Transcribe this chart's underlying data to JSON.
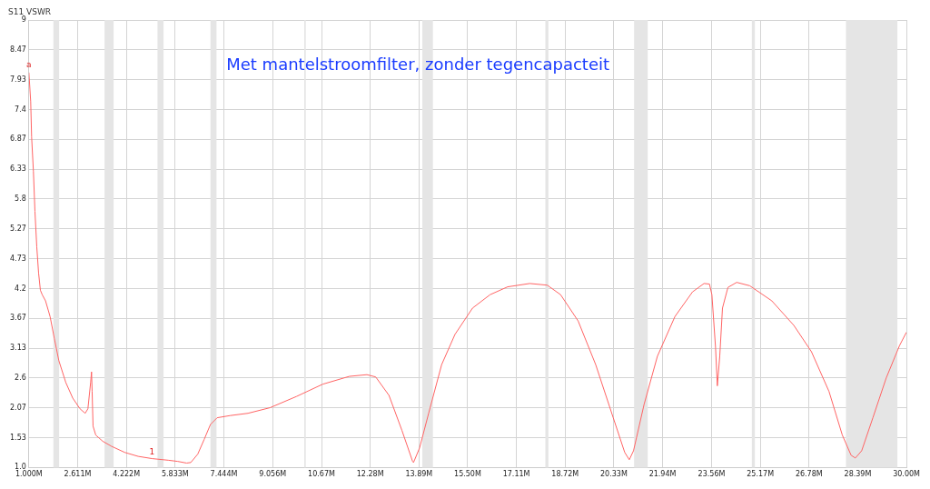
{
  "chart_data": {
    "type": "line",
    "title": "Met mantelstroomfilter, zonder tegencapacteit",
    "ylabel": "S11 VSWR",
    "xlim": [
      1,
      30
    ],
    "xticks": [
      {
        "value": 1,
        "label": "1.000M"
      },
      {
        "value": 2.611,
        "label": "2.611M"
      },
      {
        "value": 4.222,
        "label": "4.222M"
      },
      {
        "value": 5.833,
        "label": "5.833M"
      },
      {
        "value": 7.444,
        "label": "7.444M"
      },
      {
        "value": 9.056,
        "label": "9.056M"
      },
      {
        "value": 10.67,
        "label": "10.67M"
      },
      {
        "value": 12.28,
        "label": "12.28M"
      },
      {
        "value": 13.89,
        "label": "13.89M"
      },
      {
        "value": 15.5,
        "label": "15.50M"
      },
      {
        "value": 17.11,
        "label": "17.11M"
      },
      {
        "value": 18.72,
        "label": "18.72M"
      },
      {
        "value": 20.33,
        "label": "20.33M"
      },
      {
        "value": 21.94,
        "label": "21.94M"
      },
      {
        "value": 23.56,
        "label": "23.56M"
      },
      {
        "value": 25.17,
        "label": "25.17M"
      },
      {
        "value": 26.78,
        "label": "26.78M"
      },
      {
        "value": 28.39,
        "label": "28.39M"
      },
      {
        "value": 30,
        "label": "30.00M"
      }
    ],
    "ylim": [
      1,
      9
    ],
    "yticks": [
      {
        "value": 1,
        "label": "1.0"
      },
      1.53,
      2.07,
      2.6,
      3.13,
      3.67,
      4.2,
      4.73,
      5.27,
      5.8,
      6.33,
      6.87,
      7.4,
      7.93,
      8.47,
      9
    ],
    "grid": true,
    "legend": false,
    "marker": "none",
    "line_style": "solid",
    "series": [
      {
        "color": "#ff6464",
        "x": [
          1.0,
          1.06,
          1.09,
          1.15,
          1.2,
          1.26,
          1.32,
          1.38,
          1.44,
          1.55,
          1.7,
          1.84,
          1.99,
          2.22,
          2.45,
          2.69,
          2.86,
          2.95,
          3.04,
          3.07,
          3.09,
          3.12,
          3.21,
          3.44,
          3.73,
          4.17,
          4.61,
          5.07,
          5.62,
          5.92,
          6.21,
          6.35,
          6.58,
          6.79,
          7.0,
          7.22,
          7.66,
          8.24,
          8.97,
          9.84,
          10.71,
          11.59,
          12.17,
          12.46,
          12.9,
          13.33,
          13.68,
          13.71,
          13.91,
          14.21,
          14.64,
          15.08,
          15.66,
          16.24,
          16.82,
          17.55,
          18.13,
          18.57,
          19.15,
          19.73,
          20.31,
          20.69,
          20.84,
          20.98,
          21.33,
          21.77,
          22.35,
          22.93,
          23.31,
          23.49,
          23.57,
          23.69,
          23.75,
          23.83,
          23.92,
          24.1,
          24.39,
          24.82,
          25.55,
          26.28,
          26.86,
          27.44,
          27.88,
          28.17,
          28.31,
          28.52,
          28.89,
          29.33,
          29.77,
          30.0
        ],
        "values": [
          8.06,
          7.54,
          6.91,
          6.29,
          5.58,
          4.95,
          4.48,
          4.17,
          4.09,
          3.98,
          3.7,
          3.31,
          2.91,
          2.52,
          2.24,
          2.05,
          1.97,
          2.05,
          2.52,
          2.71,
          2.36,
          1.74,
          1.58,
          1.47,
          1.38,
          1.27,
          1.2,
          1.16,
          1.13,
          1.11,
          1.08,
          1.09,
          1.24,
          1.5,
          1.77,
          1.89,
          1.93,
          1.97,
          2.07,
          2.27,
          2.49,
          2.63,
          2.66,
          2.62,
          2.29,
          1.66,
          1.11,
          1.09,
          1.35,
          1.97,
          2.84,
          3.38,
          3.85,
          4.09,
          4.23,
          4.29,
          4.26,
          4.09,
          3.62,
          2.84,
          1.89,
          1.27,
          1.14,
          1.3,
          2.13,
          2.99,
          3.7,
          4.14,
          4.29,
          4.28,
          4.09,
          3.15,
          2.46,
          2.99,
          3.85,
          4.22,
          4.31,
          4.25,
          3.98,
          3.54,
          3.07,
          2.36,
          1.58,
          1.22,
          1.17,
          1.3,
          1.89,
          2.6,
          3.18,
          3.42
        ]
      }
    ],
    "bands": [
      {
        "axis": "x",
        "from": 1.81,
        "to": 2.0,
        "color": "#e5e5e5"
      },
      {
        "axis": "x",
        "from": 3.5,
        "to": 3.8,
        "color": "#e5e5e5"
      },
      {
        "axis": "x",
        "from": 5.25,
        "to": 5.45,
        "color": "#e5e5e5"
      },
      {
        "axis": "x",
        "from": 7.0,
        "to": 7.2,
        "color": "#e5e5e5"
      },
      {
        "axis": "x",
        "from": 10.1,
        "to": 10.15,
        "color": "#e5e5e5"
      },
      {
        "axis": "x",
        "from": 14.0,
        "to": 14.35,
        "color": "#e5e5e5"
      },
      {
        "axis": "x",
        "from": 18.068,
        "to": 18.168,
        "color": "#e5e5e5"
      },
      {
        "axis": "x",
        "from": 21.0,
        "to": 21.45,
        "color": "#e5e5e5"
      },
      {
        "axis": "x",
        "from": 24.89,
        "to": 24.99,
        "color": "#e5e5e5"
      },
      {
        "axis": "x",
        "from": 28.0,
        "to": 29.7,
        "color": "#e5e5e5"
      }
    ],
    "annotations": [
      {
        "text": "a",
        "x": 1.0,
        "y": 8.1
      },
      {
        "text": "1",
        "x": 5.07,
        "y": 1.19
      }
    ]
  }
}
